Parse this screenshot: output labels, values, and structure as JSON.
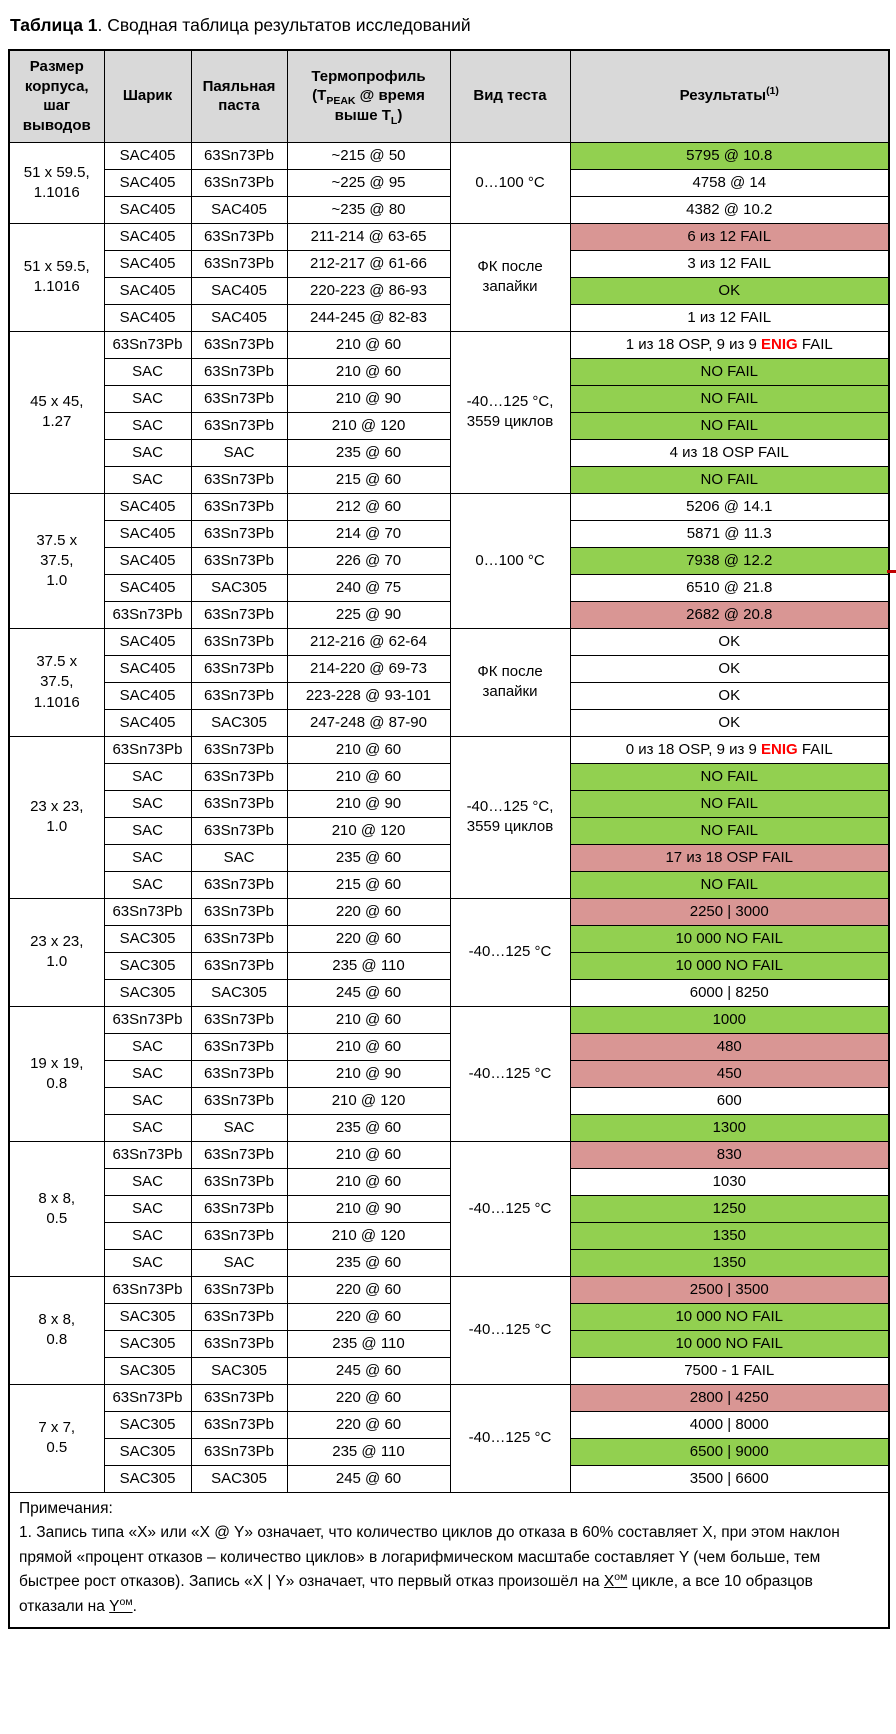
{
  "title": {
    "bold": "Таблица 1",
    "rest": ". Сводная таблица результатов исследований"
  },
  "colors": {
    "header_bg": "#D9D9D9",
    "pass_green": "#92D050",
    "fail_red": "#D99694",
    "enig_text": "#FF0000"
  },
  "table": {
    "headers": [
      "Размер\nкорпуса,\nшаг\nвыводов",
      "Шарик",
      "Паяльная\nпаста",
      "Термопрофиль\n(T[sub]PEAK[/sub] @ время\nвыше T[sub]L[/sub])",
      "Вид теста",
      "Результаты[sup](1)[/sup]"
    ],
    "groups": [
      {
        "size": "51 x 59.5,\n1.1016",
        "test": "0…100 °C",
        "rows": [
          {
            "ball": "SAC405",
            "paste": "63Sn73Pb",
            "profile": "~215 @ 50",
            "result": "5795 @ 10.8",
            "color": "green"
          },
          {
            "ball": "SAC405",
            "paste": "63Sn73Pb",
            "profile": "~225 @ 95",
            "result": "4758 @ 14",
            "color": "white"
          },
          {
            "ball": "SAC405",
            "paste": "SAC405",
            "profile": "~235 @ 80",
            "result": "4382 @ 10.2",
            "color": "white"
          }
        ]
      },
      {
        "size": "51 x 59.5,\n1.1016",
        "test": "ФК после\nзапайки",
        "rows": [
          {
            "ball": "SAC405",
            "paste": "63Sn73Pb",
            "profile": "211-214 @ 63-65",
            "result": "6 из 12 FAIL",
            "color": "red"
          },
          {
            "ball": "SAC405",
            "paste": "63Sn73Pb",
            "profile": "212-217 @ 61-66",
            "result": "3 из 12 FAIL",
            "color": "white"
          },
          {
            "ball": "SAC405",
            "paste": "SAC405",
            "profile": "220-223 @ 86-93",
            "result": "OK",
            "color": "green"
          },
          {
            "ball": "SAC405",
            "paste": "SAC405",
            "profile": "244-245 @ 82-83",
            "result": "1 из 12 FAIL",
            "color": "white"
          }
        ]
      },
      {
        "size": "45 x 45,\n1.27",
        "test": "-40…125 °C,\n3559 циклов",
        "rows": [
          {
            "ball": "63Sn73Pb",
            "paste": "63Sn73Pb",
            "profile": "210 @ 60",
            "result": "1 из 18 OSP, 9 из 9 [red]ENIG[/red] FAIL",
            "color": "white"
          },
          {
            "ball": "SAC",
            "paste": "63Sn73Pb",
            "profile": "210 @ 60",
            "result": "NO FAIL",
            "color": "green"
          },
          {
            "ball": "SAC",
            "paste": "63Sn73Pb",
            "profile": "210 @ 90",
            "result": "NO FAIL",
            "color": "green"
          },
          {
            "ball": "SAC",
            "paste": "63Sn73Pb",
            "profile": "210 @ 120",
            "result": "NO FAIL",
            "color": "green"
          },
          {
            "ball": "SAC",
            "paste": "SAC",
            "profile": "235 @ 60",
            "result": "4 из 18 OSP FAIL",
            "color": "white"
          },
          {
            "ball": "SAC",
            "paste": "63Sn73Pb",
            "profile": "215 @ 60",
            "result": "NO FAIL",
            "color": "green"
          }
        ]
      },
      {
        "size": "37.5 x\n37.5,\n1.0",
        "test": "0…100 °C",
        "rows": [
          {
            "ball": "SAC405",
            "paste": "63Sn73Pb",
            "profile": "212 @ 60",
            "result": "5206 @ 14.1",
            "color": "white"
          },
          {
            "ball": "SAC405",
            "paste": "63Sn73Pb",
            "profile": "214 @ 70",
            "result": "5871 @ 11.3",
            "color": "white"
          },
          {
            "ball": "SAC405",
            "paste": "63Sn73Pb",
            "profile": "226 @ 70",
            "result": "7938 @ 12.2",
            "color": "green"
          },
          {
            "ball": "SAC405",
            "paste": "SAC305",
            "profile": "240 @ 75",
            "result": "6510 @ 21.8",
            "color": "white"
          },
          {
            "ball": "63Sn73Pb",
            "paste": "63Sn73Pb",
            "profile": "225 @ 90",
            "result": "2682 @ 20.8",
            "color": "red"
          }
        ]
      },
      {
        "size": "37.5 x\n37.5,\n1.1016",
        "test": "ФК после\nзапайки",
        "rows": [
          {
            "ball": "SAC405",
            "paste": "63Sn73Pb",
            "profile": "212-216 @ 62-64",
            "result": "OK",
            "color": "white"
          },
          {
            "ball": "SAC405",
            "paste": "63Sn73Pb",
            "profile": "214-220 @ 69-73",
            "result": "OK",
            "color": "white"
          },
          {
            "ball": "SAC405",
            "paste": "63Sn73Pb",
            "profile": "223-228 @ 93-101",
            "result": "OK",
            "color": "white"
          },
          {
            "ball": "SAC405",
            "paste": "SAC305",
            "profile": "247-248 @ 87-90",
            "result": "OK",
            "color": "white"
          }
        ]
      },
      {
        "size": "23 x 23,\n1.0",
        "test": "-40…125 °C,\n3559 циклов",
        "rows": [
          {
            "ball": "63Sn73Pb",
            "paste": "63Sn73Pb",
            "profile": "210 @ 60",
            "result": "0 из 18 OSP, 9 из 9 [red]ENIG[/red] FAIL",
            "color": "white"
          },
          {
            "ball": "SAC",
            "paste": "63Sn73Pb",
            "profile": "210 @ 60",
            "result": "NO FAIL",
            "color": "green"
          },
          {
            "ball": "SAC",
            "paste": "63Sn73Pb",
            "profile": "210 @ 90",
            "result": "NO FAIL",
            "color": "green"
          },
          {
            "ball": "SAC",
            "paste": "63Sn73Pb",
            "profile": "210 @ 120",
            "result": "NO FAIL",
            "color": "green"
          },
          {
            "ball": "SAC",
            "paste": "SAC",
            "profile": "235 @ 60",
            "result": "17 из 18 OSP FAIL",
            "color": "red"
          },
          {
            "ball": "SAC",
            "paste": "63Sn73Pb",
            "profile": "215 @ 60",
            "result": "NO FAIL",
            "color": "green"
          }
        ]
      },
      {
        "size": "23 x 23,\n1.0",
        "test": "-40…125 °C",
        "rows": [
          {
            "ball": "63Sn73Pb",
            "paste": "63Sn73Pb",
            "profile": "220 @ 60",
            "result": "2250 | 3000",
            "color": "red"
          },
          {
            "ball": "SAC305",
            "paste": "63Sn73Pb",
            "profile": "220 @ 60",
            "result": "10 000 NO FAIL",
            "color": "green"
          },
          {
            "ball": "SAC305",
            "paste": "63Sn73Pb",
            "profile": "235 @ 110",
            "result": "10 000 NO FAIL",
            "color": "green"
          },
          {
            "ball": "SAC305",
            "paste": "SAC305",
            "profile": "245 @ 60",
            "result": "6000 | 8250",
            "color": "white"
          }
        ]
      },
      {
        "size": "19 x 19,\n0.8",
        "test": "-40…125 °C",
        "rows": [
          {
            "ball": "63Sn73Pb",
            "paste": "63Sn73Pb",
            "profile": "210 @ 60",
            "result": "1000",
            "color": "green"
          },
          {
            "ball": "SAC",
            "paste": "63Sn73Pb",
            "profile": "210 @ 60",
            "result": "480",
            "color": "red"
          },
          {
            "ball": "SAC",
            "paste": "63Sn73Pb",
            "profile": "210 @ 90",
            "result": "450",
            "color": "red"
          },
          {
            "ball": "SAC",
            "paste": "63Sn73Pb",
            "profile": "210 @ 120",
            "result": "600",
            "color": "white"
          },
          {
            "ball": "SAC",
            "paste": "SAC",
            "profile": "235 @ 60",
            "result": "1300",
            "color": "green"
          }
        ]
      },
      {
        "size": "8 x 8,\n0.5",
        "test": "-40…125 °C",
        "rows": [
          {
            "ball": "63Sn73Pb",
            "paste": "63Sn73Pb",
            "profile": "210 @ 60",
            "result": "830",
            "color": "red"
          },
          {
            "ball": "SAC",
            "paste": "63Sn73Pb",
            "profile": "210 @ 60",
            "result": "1030",
            "color": "white"
          },
          {
            "ball": "SAC",
            "paste": "63Sn73Pb",
            "profile": "210 @ 90",
            "result": "1250",
            "color": "green"
          },
          {
            "ball": "SAC",
            "paste": "63Sn73Pb",
            "profile": "210 @ 120",
            "result": "1350",
            "color": "green"
          },
          {
            "ball": "SAC",
            "paste": "SAC",
            "profile": "235 @ 60",
            "result": "1350",
            "color": "green"
          }
        ]
      },
      {
        "size": "8 x 8,\n0.8",
        "test": "-40…125 °C",
        "rows": [
          {
            "ball": "63Sn73Pb",
            "paste": "63Sn73Pb",
            "profile": "220 @ 60",
            "result": "2500 | 3500",
            "color": "red"
          },
          {
            "ball": "SAC305",
            "paste": "63Sn73Pb",
            "profile": "220 @ 60",
            "result": "10 000 NO FAIL",
            "color": "green"
          },
          {
            "ball": "SAC305",
            "paste": "63Sn73Pb",
            "profile": "235 @ 110",
            "result": "10 000 NO FAIL",
            "color": "green"
          },
          {
            "ball": "SAC305",
            "paste": "SAC305",
            "profile": "245 @ 60",
            "result": "7500 - 1 FAIL",
            "color": "white"
          }
        ]
      },
      {
        "size": "7 x 7,\n0.5",
        "test": "-40…125 °C",
        "rows": [
          {
            "ball": "63Sn73Pb",
            "paste": "63Sn73Pb",
            "profile": "220 @ 60",
            "result": "2800 | 4250",
            "color": "red"
          },
          {
            "ball": "SAC305",
            "paste": "63Sn73Pb",
            "profile": "220 @ 60",
            "result": "4000 | 8000",
            "color": "white"
          },
          {
            "ball": "SAC305",
            "paste": "63Sn73Pb",
            "profile": "235 @ 110",
            "result": "6500 | 9000",
            "color": "green"
          },
          {
            "ball": "SAC305",
            "paste": "SAC305",
            "profile": "245 @ 60",
            "result": "3500 | 6600",
            "color": "white"
          }
        ]
      }
    ]
  },
  "notes": {
    "heading": "Примечания:",
    "paragraph": "1. Запись типа «X» или «X @ Y» означает, что количество циклов до отказа в 60% составляет X, при этом наклон прямой «процент отказов – количество циклов» в логарифмическом масштабе составляет Y (чем больше, тем быстрее рост отказов). Запись «X | Y» означает, что первый отказ произошёл на [u]X[sup]ом[/sup][/u] цикле, а все 10 образцов отказали на [u]Y[sup]ом[/sup][/u]."
  }
}
